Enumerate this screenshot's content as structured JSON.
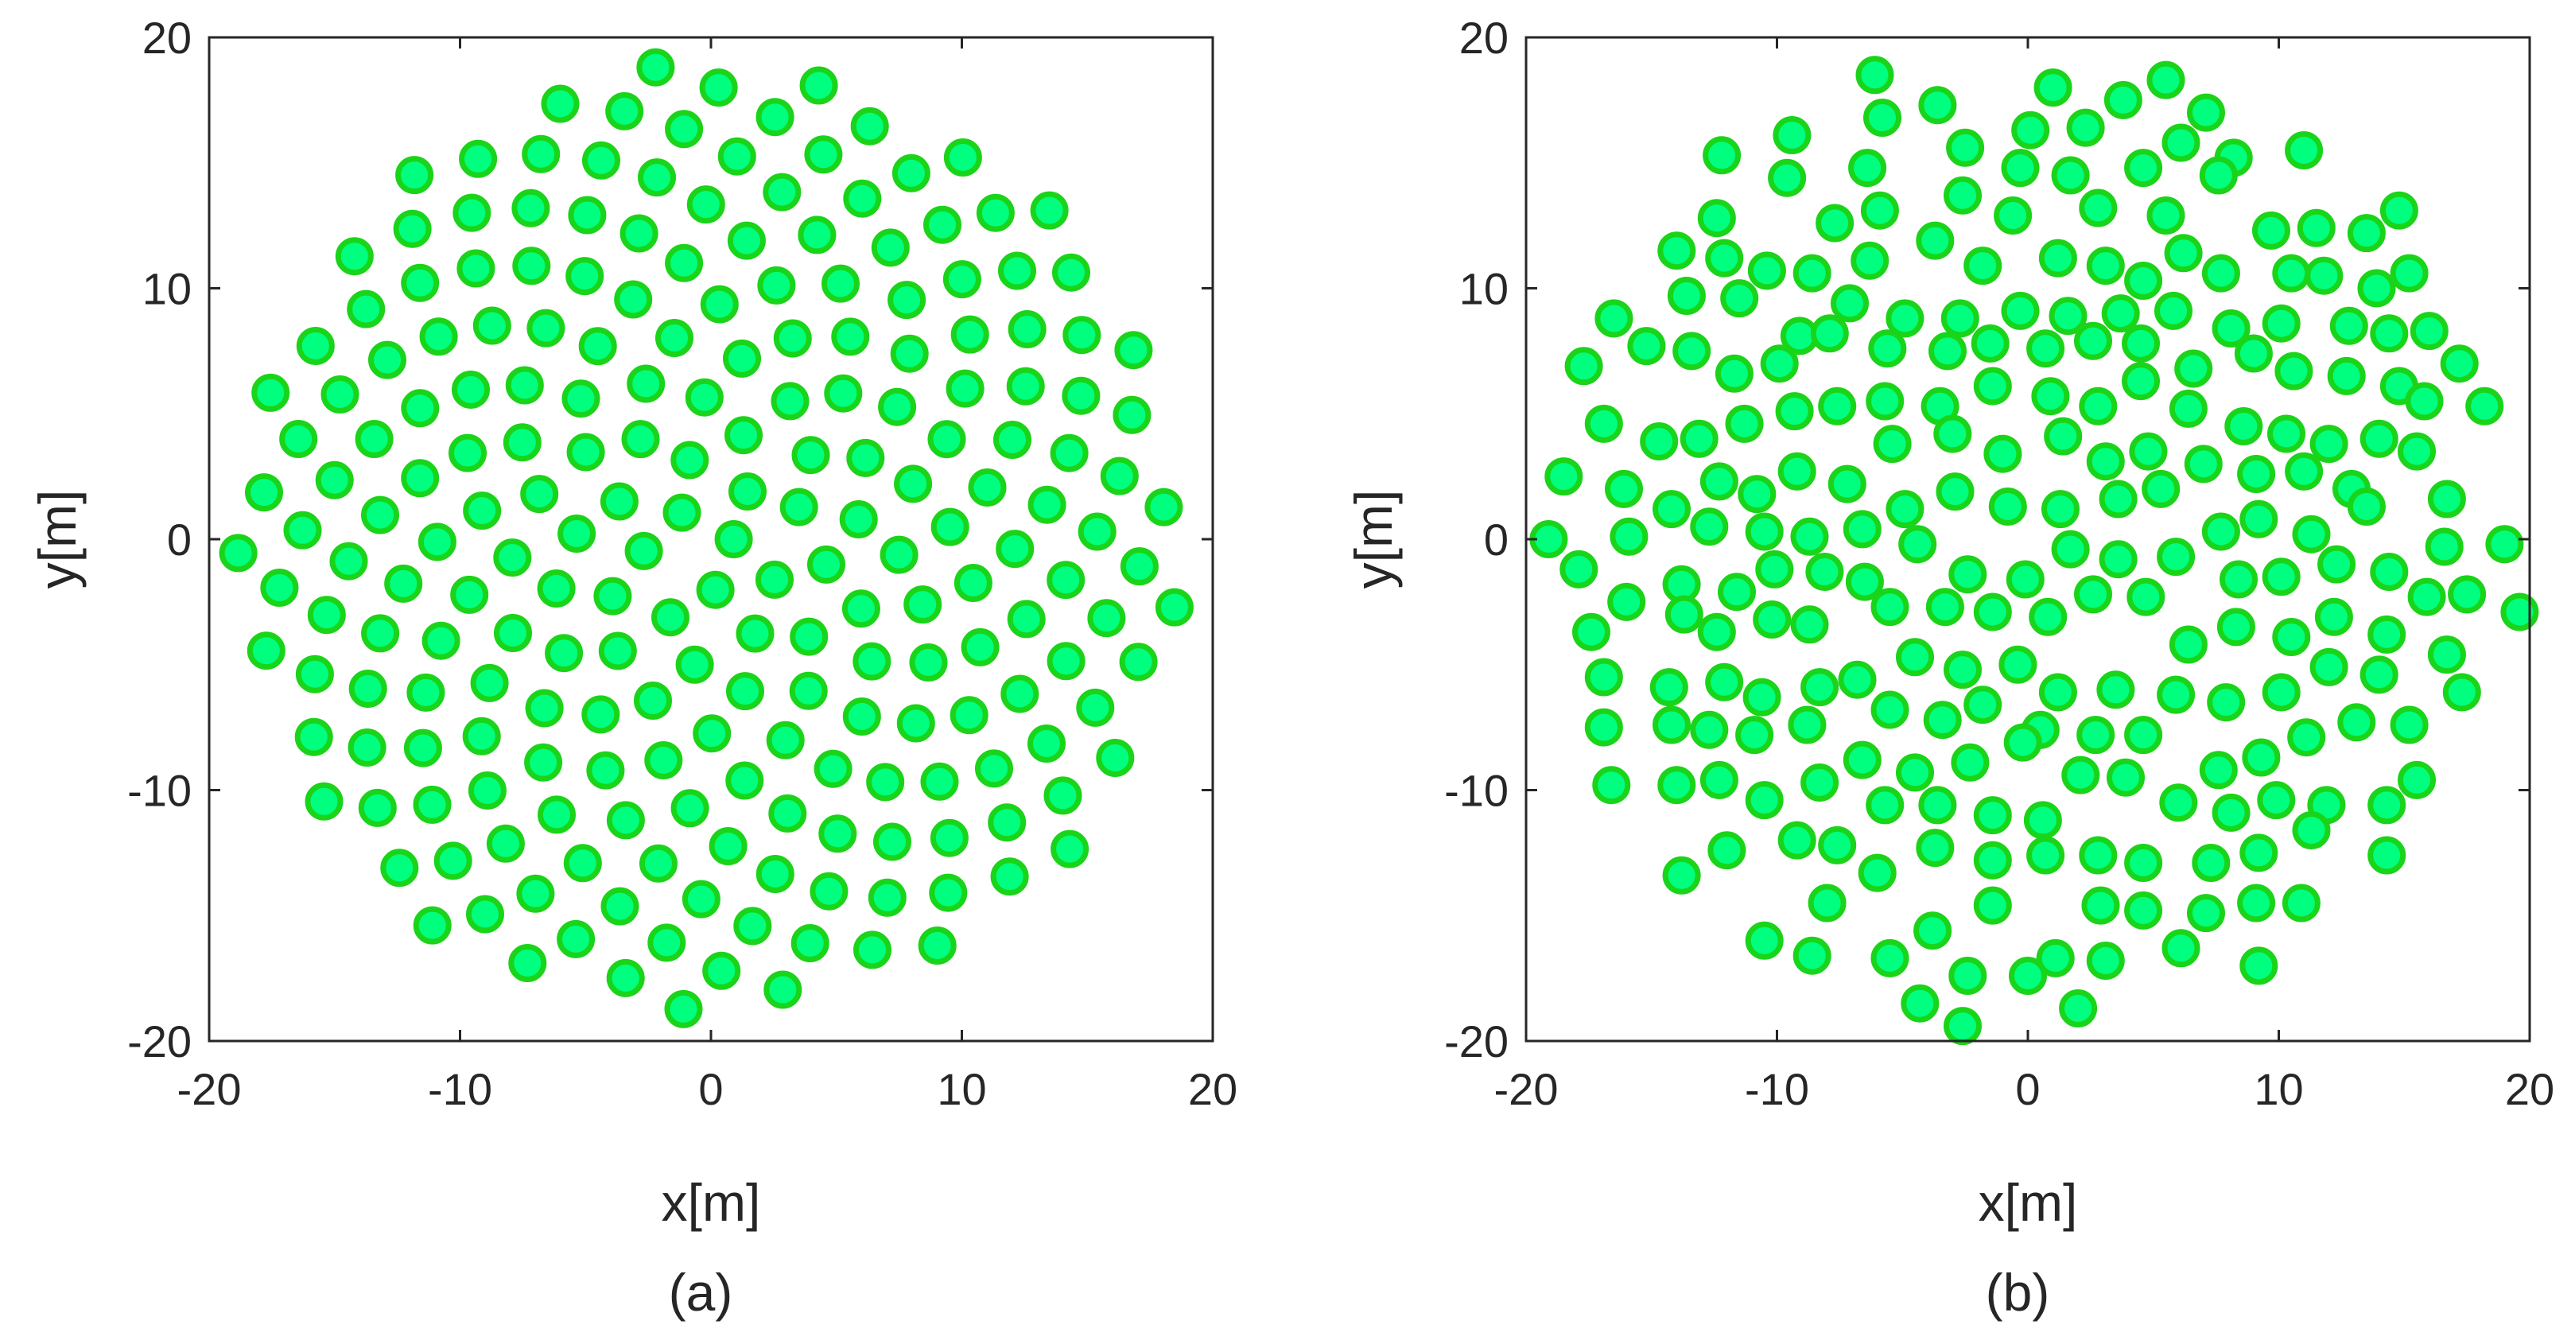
{
  "chart_data": [
    {
      "type": "scatter",
      "caption": "(a)",
      "xlabel": "x[m]",
      "ylabel": "y[m]",
      "xlim": [
        -20,
        20
      ],
      "ylim": [
        -20,
        20
      ],
      "xticks": [
        "-20",
        "-10",
        "0",
        "10",
        "20"
      ],
      "yticks": [
        "-20",
        "-10",
        "0",
        "10",
        "20"
      ],
      "grid": false,
      "marker": {
        "fill": "#00ff7f",
        "edge": "#19d419",
        "radius_m": 0.65
      },
      "layout_pattern": "phyllotaxis",
      "n_points": 220,
      "radius_m": 19
    },
    {
      "type": "scatter",
      "caption": "(b)",
      "xlabel": "x[m]",
      "ylabel": "y[m]",
      "xlim": [
        -20,
        20
      ],
      "ylim": [
        -20,
        20
      ],
      "xticks": [
        "-20",
        "-10",
        "0",
        "10",
        "20"
      ],
      "yticks": [
        "-20",
        "-10",
        "0",
        "10",
        "20"
      ],
      "grid": false,
      "marker": {
        "fill": "#00ff7f",
        "edge": "#19d419",
        "radius_m": 0.65
      },
      "points": [
        [
          -6.1,
          18.5
        ],
        [
          1.0,
          18.0
        ],
        [
          5.5,
          18.3
        ],
        [
          -3.6,
          17.3
        ],
        [
          -5.8,
          16.8
        ],
        [
          2.3,
          16.4
        ],
        [
          3.8,
          17.5
        ],
        [
          7.1,
          17.0
        ],
        [
          11.0,
          15.5
        ],
        [
          -12.2,
          15.3
        ],
        [
          -9.4,
          16.1
        ],
        [
          -6.4,
          14.8
        ],
        [
          -2.5,
          15.6
        ],
        [
          -0.3,
          14.8
        ],
        [
          0.1,
          16.3
        ],
        [
          1.7,
          14.5
        ],
        [
          4.6,
          14.8
        ],
        [
          6.1,
          15.8
        ],
        [
          8.2,
          15.2
        ],
        [
          14.8,
          13.1
        ],
        [
          -12.4,
          12.8
        ],
        [
          -9.6,
          14.4
        ],
        [
          -7.7,
          12.6
        ],
        [
          -5.9,
          13.1
        ],
        [
          -2.6,
          13.7
        ],
        [
          -0.6,
          12.9
        ],
        [
          2.8,
          13.2
        ],
        [
          5.5,
          12.9
        ],
        [
          7.6,
          14.5
        ],
        [
          9.7,
          12.3
        ],
        [
          11.5,
          12.4
        ],
        [
          13.5,
          12.2
        ],
        [
          -14.0,
          11.5
        ],
        [
          -12.1,
          11.2
        ],
        [
          -10.4,
          10.7
        ],
        [
          -8.6,
          10.6
        ],
        [
          -6.3,
          11.1
        ],
        [
          -3.7,
          11.9
        ],
        [
          -1.8,
          10.9
        ],
        [
          1.2,
          11.2
        ],
        [
          3.1,
          10.9
        ],
        [
          4.6,
          10.3
        ],
        [
          6.2,
          11.4
        ],
        [
          7.7,
          10.6
        ],
        [
          10.5,
          10.6
        ],
        [
          11.8,
          10.5
        ],
        [
          13.9,
          10.0
        ],
        [
          15.2,
          10.6
        ],
        [
          -16.5,
          8.8
        ],
        [
          -13.6,
          9.7
        ],
        [
          -11.5,
          9.6
        ],
        [
          -9.1,
          8.1
        ],
        [
          -7.1,
          9.4
        ],
        [
          -4.9,
          8.8
        ],
        [
          -2.7,
          8.8
        ],
        [
          -0.3,
          9.1
        ],
        [
          1.6,
          8.9
        ],
        [
          3.7,
          9.0
        ],
        [
          5.8,
          9.1
        ],
        [
          8.1,
          8.4
        ],
        [
          10.1,
          8.6
        ],
        [
          12.8,
          8.5
        ],
        [
          14.4,
          8.2
        ],
        [
          16.0,
          8.3
        ],
        [
          -17.7,
          6.9
        ],
        [
          -15.2,
          7.7
        ],
        [
          -13.4,
          7.5
        ],
        [
          -11.7,
          6.6
        ],
        [
          -9.9,
          7.0
        ],
        [
          -7.9,
          8.2
        ],
        [
          -5.6,
          7.6
        ],
        [
          -3.2,
          7.5
        ],
        [
          -1.5,
          7.8
        ],
        [
          0.7,
          7.6
        ],
        [
          2.6,
          7.9
        ],
        [
          4.5,
          7.8
        ],
        [
          6.6,
          6.8
        ],
        [
          9.0,
          7.4
        ],
        [
          10.6,
          6.7
        ],
        [
          12.7,
          6.5
        ],
        [
          14.8,
          6.1
        ],
        [
          17.2,
          7.0
        ],
        [
          -16.9,
          4.6
        ],
        [
          -14.7,
          3.9
        ],
        [
          -13.1,
          4.0
        ],
        [
          -11.3,
          4.6
        ],
        [
          -9.3,
          5.1
        ],
        [
          -7.6,
          5.3
        ],
        [
          -5.7,
          5.5
        ],
        [
          -3.5,
          5.3
        ],
        [
          -1.4,
          6.1
        ],
        [
          0.9,
          5.7
        ],
        [
          2.8,
          5.3
        ],
        [
          4.5,
          6.3
        ],
        [
          6.4,
          5.2
        ],
        [
          8.6,
          4.5
        ],
        [
          10.3,
          4.2
        ],
        [
          12.0,
          3.8
        ],
        [
          14.0,
          4.0
        ],
        [
          15.8,
          5.5
        ],
        [
          18.2,
          5.3
        ],
        [
          -18.5,
          2.5
        ],
        [
          -16.1,
          2.0
        ],
        [
          -14.2,
          1.2
        ],
        [
          -12.3,
          2.3
        ],
        [
          -10.8,
          1.8
        ],
        [
          -9.2,
          2.7
        ],
        [
          -7.2,
          2.2
        ],
        [
          -5.4,
          3.8
        ],
        [
          -3.0,
          4.2
        ],
        [
          -1.0,
          3.4
        ],
        [
          1.4,
          4.1
        ],
        [
          3.1,
          3.1
        ],
        [
          4.8,
          3.5
        ],
        [
          7.0,
          3.0
        ],
        [
          9.1,
          2.6
        ],
        [
          11.0,
          2.7
        ],
        [
          12.9,
          2.0
        ],
        [
          15.5,
          3.5
        ],
        [
          -15.9,
          0.1
        ],
        [
          -12.7,
          0.5
        ],
        [
          -10.5,
          0.3
        ],
        [
          -8.7,
          0.1
        ],
        [
          -6.6,
          0.4
        ],
        [
          -4.9,
          1.2
        ],
        [
          -2.9,
          1.9
        ],
        [
          -0.8,
          1.3
        ],
        [
          1.3,
          1.2
        ],
        [
          3.6,
          1.6
        ],
        [
          5.3,
          2.0
        ],
        [
          7.7,
          0.3
        ],
        [
          9.2,
          0.8
        ],
        [
          11.3,
          0.2
        ],
        [
          13.5,
          1.3
        ],
        [
          16.7,
          1.6
        ],
        [
          -19.1,
          0.0
        ],
        [
          -17.9,
          -1.2
        ],
        [
          -16.0,
          -2.5
        ],
        [
          -13.8,
          -1.8
        ],
        [
          -11.6,
          -2.1
        ],
        [
          -10.1,
          -1.2
        ],
        [
          -8.1,
          -1.3
        ],
        [
          -6.5,
          -1.7
        ],
        [
          -4.4,
          -0.2
        ],
        [
          -2.4,
          -1.4
        ],
        [
          -0.1,
          -1.6
        ],
        [
          1.7,
          -0.4
        ],
        [
          3.6,
          -0.8
        ],
        [
          5.9,
          -0.7
        ],
        [
          8.4,
          -1.6
        ],
        [
          10.1,
          -1.5
        ],
        [
          12.3,
          -1.0
        ],
        [
          14.4,
          -1.3
        ],
        [
          16.6,
          -0.3
        ],
        [
          19.0,
          -0.2
        ],
        [
          -17.4,
          -3.7
        ],
        [
          -13.7,
          -3.0
        ],
        [
          -12.4,
          -3.7
        ],
        [
          -10.2,
          -3.2
        ],
        [
          -8.7,
          -3.4
        ],
        [
          -5.5,
          -2.7
        ],
        [
          -3.3,
          -2.7
        ],
        [
          -1.4,
          -2.9
        ],
        [
          0.8,
          -3.1
        ],
        [
          2.6,
          -2.2
        ],
        [
          4.7,
          -2.3
        ],
        [
          6.4,
          -4.2
        ],
        [
          8.3,
          -3.5
        ],
        [
          10.5,
          -3.9
        ],
        [
          12.2,
          -3.1
        ],
        [
          14.3,
          -3.8
        ],
        [
          15.9,
          -2.3
        ],
        [
          17.5,
          -2.2
        ],
        [
          19.6,
          -2.9
        ],
        [
          -16.9,
          -5.5
        ],
        [
          -14.3,
          -5.9
        ],
        [
          -12.1,
          -5.7
        ],
        [
          -10.6,
          -6.3
        ],
        [
          -8.3,
          -5.9
        ],
        [
          -6.8,
          -5.6
        ],
        [
          -4.5,
          -4.7
        ],
        [
          -2.6,
          -5.2
        ],
        [
          -0.4,
          -5.0
        ],
        [
          1.2,
          -6.1
        ],
        [
          3.5,
          -6.0
        ],
        [
          5.9,
          -6.2
        ],
        [
          7.9,
          -6.5
        ],
        [
          10.1,
          -6.1
        ],
        [
          12.0,
          -5.1
        ],
        [
          14.0,
          -5.4
        ],
        [
          16.7,
          -4.6
        ],
        [
          -16.9,
          -7.5
        ],
        [
          -14.2,
          -7.4
        ],
        [
          -12.7,
          -7.6
        ],
        [
          -10.9,
          -7.8
        ],
        [
          -8.8,
          -7.4
        ],
        [
          -5.5,
          -6.8
        ],
        [
          -3.4,
          -7.2
        ],
        [
          -1.8,
          -6.6
        ],
        [
          0.5,
          -7.6
        ],
        [
          2.7,
          -7.8
        ],
        [
          4.6,
          -7.8
        ],
        [
          7.6,
          -9.2
        ],
        [
          9.3,
          -8.7
        ],
        [
          11.1,
          -7.9
        ],
        [
          13.1,
          -7.3
        ],
        [
          15.2,
          -7.4
        ],
        [
          17.3,
          -6.1
        ],
        [
          -16.6,
          -9.8
        ],
        [
          -14.0,
          -9.8
        ],
        [
          -12.3,
          -9.6
        ],
        [
          -10.5,
          -10.4
        ],
        [
          -8.3,
          -9.7
        ],
        [
          -6.6,
          -8.8
        ],
        [
          -4.5,
          -9.3
        ],
        [
          -2.3,
          -8.9
        ],
        [
          -0.2,
          -8.1
        ],
        [
          2.1,
          -9.4
        ],
        [
          3.9,
          -9.5
        ],
        [
          6.0,
          -10.5
        ],
        [
          8.1,
          -10.9
        ],
        [
          9.9,
          -10.4
        ],
        [
          11.9,
          -10.6
        ],
        [
          14.3,
          -10.6
        ],
        [
          15.5,
          -9.6
        ],
        [
          -13.8,
          -13.4
        ],
        [
          -12.0,
          -12.4
        ],
        [
          -9.2,
          -12.0
        ],
        [
          -7.6,
          -12.2
        ],
        [
          -5.7,
          -10.6
        ],
        [
          -3.6,
          -10.6
        ],
        [
          -1.4,
          -11.0
        ],
        [
          0.6,
          -11.2
        ],
        [
          2.8,
          -12.6
        ],
        [
          4.6,
          -12.9
        ],
        [
          7.3,
          -12.9
        ],
        [
          9.2,
          -12.5
        ],
        [
          11.3,
          -11.6
        ],
        [
          14.3,
          -12.6
        ],
        [
          -10.5,
          -16.0
        ],
        [
          -8.0,
          -14.5
        ],
        [
          -6.0,
          -13.3
        ],
        [
          -3.7,
          -12.3
        ],
        [
          -1.4,
          -12.8
        ],
        [
          0.7,
          -12.6
        ],
        [
          2.9,
          -14.6
        ],
        [
          4.6,
          -14.8
        ],
        [
          7.1,
          -14.9
        ],
        [
          9.1,
          -14.5
        ],
        [
          10.9,
          -14.5
        ],
        [
          -8.6,
          -16.6
        ],
        [
          -5.5,
          -16.7
        ],
        [
          -3.8,
          -15.6
        ],
        [
          -1.4,
          -14.6
        ],
        [
          1.1,
          -16.7
        ],
        [
          3.1,
          -16.8
        ],
        [
          6.1,
          -16.3
        ],
        [
          -4.3,
          -18.5
        ],
        [
          -2.4,
          -17.4
        ],
        [
          0.0,
          -17.4
        ],
        [
          2.0,
          -18.7
        ],
        [
          -2.6,
          -19.4
        ],
        [
          9.2,
          -17.0
        ]
      ]
    }
  ]
}
